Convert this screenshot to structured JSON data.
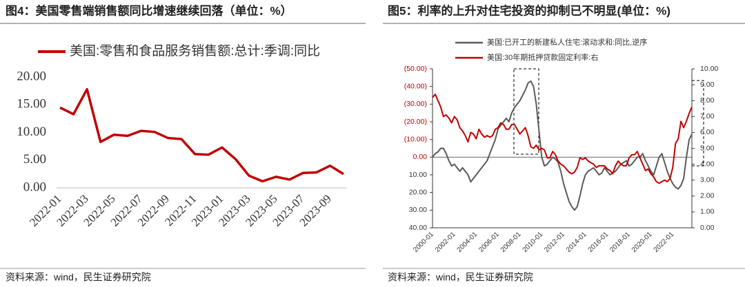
{
  "chart_data": [
    {
      "type": "line",
      "title": "图4：美国零售端销售额同比增速继续回落（单位：%）",
      "source": "资料来源：wind，民生证券研究院",
      "categories": [
        "2022-01",
        null,
        "2022-03",
        null,
        "2022-05",
        null,
        "2022-07",
        null,
        "2022-09",
        null,
        "2022-11",
        null,
        "2023-01",
        null,
        "2023-03",
        null,
        "2023-05",
        null,
        "2023-07",
        null,
        "2023-09",
        null
      ],
      "series": [
        {
          "name": "美国:零售和食品服务销售额:总计:季调:同比",
          "color": "#c00000",
          "values": [
            14.5,
            13.3,
            17.8,
            8.3,
            9.6,
            9.4,
            10.3,
            10.1,
            9.0,
            8.8,
            6.1,
            6.0,
            7.3,
            5.2,
            2.2,
            1.2,
            2.0,
            1.5,
            2.7,
            2.8,
            4.0,
            2.5
          ]
        }
      ],
      "ylim": [
        0,
        20
      ],
      "yticks": [
        {
          "value": 0,
          "label": "0.00"
        },
        {
          "value": 5,
          "label": "5.00"
        },
        {
          "value": 10,
          "label": "10.00"
        },
        {
          "value": 15,
          "label": "15.00"
        },
        {
          "value": 20,
          "label": "20.00"
        }
      ],
      "legend": "top-left"
    },
    {
      "type": "line",
      "title": "图5：利率的上升对住宅投资的抑制已不明显(单位：%)",
      "source": "资料来源：wind，民生证券研究院",
      "categories": [
        "2000-01",
        null,
        null,
        null,
        null,
        null,
        null,
        null,
        "2002-01",
        null,
        null,
        null,
        null,
        null,
        null,
        null,
        "2004-01",
        null,
        null,
        null,
        null,
        null,
        null,
        null,
        "2006-01",
        null,
        null,
        null,
        null,
        null,
        null,
        null,
        "2008-01",
        null,
        null,
        null,
        null,
        null,
        null,
        null,
        "2010-01",
        null,
        null,
        null,
        null,
        null,
        null,
        null,
        "2012-01",
        null,
        null,
        null,
        null,
        null,
        null,
        null,
        "2014-01",
        null,
        null,
        null,
        null,
        null,
        null,
        null,
        "2016-01",
        null,
        null,
        null,
        null,
        null,
        null,
        null,
        "2018-01",
        null,
        null,
        null,
        null,
        null,
        null,
        null,
        "2020-01",
        null,
        null,
        null,
        null,
        null,
        null,
        null,
        "2022-01",
        null,
        null,
        null,
        null,
        null,
        null,
        null
      ],
      "series": [
        {
          "name": "美国:已开工的新建私人住宅:滚动求和:同比,逆序",
          "color": "#595959",
          "values": [
            0,
            -2,
            -3,
            -5,
            -5,
            -2,
            2,
            5,
            4,
            6,
            8,
            6,
            8,
            10,
            14,
            12,
            10,
            8,
            6,
            4,
            2,
            -2,
            -6,
            -10,
            -16,
            -18,
            -20,
            -22,
            -20,
            -25,
            -28,
            -30,
            -32,
            -35,
            -38,
            -42,
            -43,
            -40,
            -30,
            -15,
            0,
            5,
            4,
            2,
            0,
            1,
            3,
            8,
            15,
            20,
            25,
            28,
            30,
            28,
            22,
            15,
            10,
            8,
            7,
            6,
            8,
            10,
            9,
            6,
            8,
            10,
            9,
            8,
            6,
            4,
            3,
            2,
            5,
            4,
            2,
            0,
            0,
            -2,
            2,
            5,
            8,
            10,
            5,
            0,
            -2,
            3,
            8,
            12,
            15,
            17,
            18,
            16,
            12,
            0,
            -10,
            -13
          ]
        },
        {
          "name": "美国:30年期抵押贷款固定利率:右",
          "color": "#c00000",
          "axis": "y2",
          "values": [
            8.2,
            8.4,
            8.0,
            7.6,
            7.0,
            7.1,
            6.9,
            6.6,
            7.0,
            6.8,
            6.3,
            6.1,
            5.8,
            5.4,
            6.0,
            5.9,
            5.6,
            6.2,
            5.9,
            5.7,
            5.8,
            5.7,
            5.8,
            6.2,
            6.3,
            6.6,
            6.5,
            6.2,
            6.2,
            6.5,
            6.5,
            6.2,
            5.9,
            6.1,
            6.3,
            5.8,
            5.1,
            5.0,
            5.2,
            4.9,
            5.0,
            4.9,
            4.4,
            4.4,
            4.8,
            4.6,
            4.2,
            4.0,
            3.9,
            3.7,
            3.5,
            3.4,
            3.5,
            3.8,
            4.4,
            4.3,
            4.4,
            4.2,
            4.1,
            4.0,
            3.8,
            3.9,
            3.9,
            3.9,
            3.7,
            3.6,
            3.4,
            3.9,
            4.2,
            4.0,
            3.9,
            3.9,
            4.4,
            4.6,
            4.6,
            4.8,
            4.4,
            4.0,
            3.6,
            3.7,
            3.4,
            3.2,
            2.9,
            2.8,
            2.9,
            3.0,
            2.9,
            3.1,
            3.8,
            5.3,
            5.6,
            6.7,
            6.3,
            6.7,
            7.2,
            7.6
          ]
        }
      ],
      "ylim": [
        -50,
        40
      ],
      "inverted": true,
      "yticks": [
        {
          "value": -50,
          "label": "(50.00)"
        },
        {
          "value": -40,
          "label": "(40.00)"
        },
        {
          "value": -30,
          "label": "(30.00)"
        },
        {
          "value": -20,
          "label": "(20.00)"
        },
        {
          "value": -10,
          "label": "(10.00)"
        },
        {
          "value": 0,
          "label": "0.00"
        },
        {
          "value": 10,
          "label": "10.00"
        },
        {
          "value": 20,
          "label": "20.00"
        },
        {
          "value": 30,
          "label": "30.00"
        },
        {
          "value": 40,
          "label": "40.00"
        }
      ],
      "y2lim": [
        0,
        10
      ],
      "y2ticks": [
        {
          "value": 0,
          "label": "0.00"
        },
        {
          "value": 1,
          "label": "1.00"
        },
        {
          "value": 2,
          "label": "2.00"
        },
        {
          "value": 3,
          "label": "3.00"
        },
        {
          "value": 4,
          "label": "4.00"
        },
        {
          "value": 5,
          "label": "5.00"
        },
        {
          "value": 6,
          "label": "6.00"
        },
        {
          "value": 7,
          "label": "7.00"
        },
        {
          "value": 8,
          "label": "8.00"
        },
        {
          "value": 9,
          "label": "9.00"
        },
        {
          "value": 10,
          "label": "10.00"
        }
      ],
      "legend": "top-left"
    }
  ]
}
